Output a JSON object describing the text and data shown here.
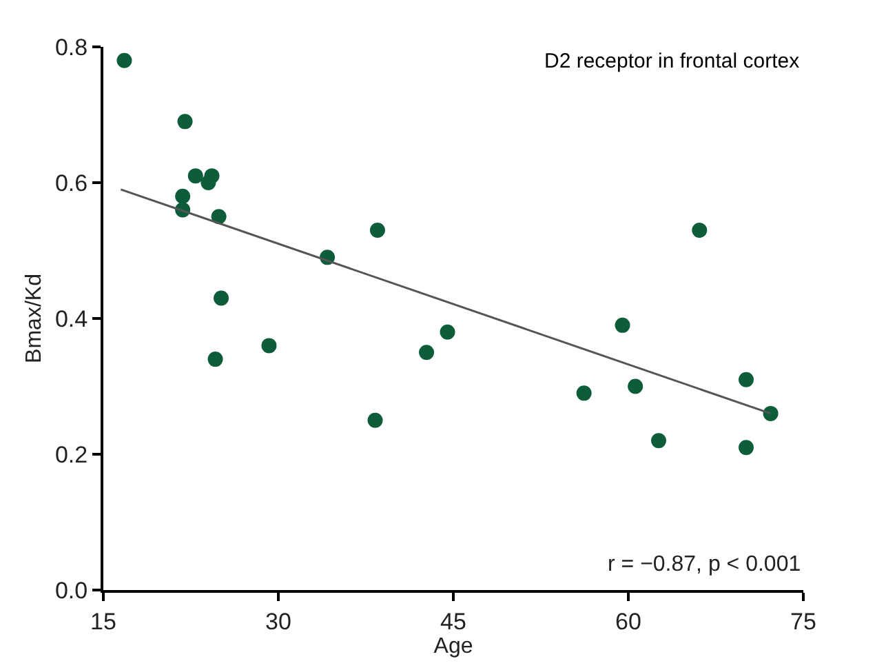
{
  "chart_data": {
    "type": "scatter",
    "title": "D2 receptor in frontal cortex",
    "xlabel": "Age",
    "ylabel": "Bmax/Kd",
    "xlim": [
      15,
      75
    ],
    "xticks": [
      15,
      30,
      45,
      60,
      75
    ],
    "ylim": [
      0,
      0.8
    ],
    "yticks": [
      {
        "value": 0,
        "label": "0.0"
      },
      0.2,
      0.4,
      0.6,
      0.8
    ],
    "series": [
      {
        "marker": "circle",
        "color": "#0d5c3a",
        "x": [
          16.8,
          22.0,
          22.9,
          24.3,
          24.0,
          21.8,
          21.8,
          24.9,
          34.2,
          38.5,
          25.1,
          24.6,
          29.2,
          38.3,
          42.7,
          44.5,
          66.1,
          59.5,
          56.2,
          60.6,
          62.6,
          70.1,
          72.2,
          70.1
        ],
        "values": [
          0.78,
          0.69,
          0.61,
          0.61,
          0.6,
          0.58,
          0.56,
          0.55,
          0.49,
          0.53,
          0.43,
          0.34,
          0.36,
          0.25,
          0.35,
          0.38,
          0.53,
          0.39,
          0.29,
          0.3,
          0.22,
          0.31,
          0.26,
          0.21
        ]
      },
      {
        "type": "line",
        "marker": "none",
        "color": "#555555",
        "x": [
          16.5,
          72.2
        ],
        "values": [
          0.59,
          0.26
        ]
      }
    ],
    "annotations": [
      "r = −0.87, p < 0.001"
    ]
  }
}
